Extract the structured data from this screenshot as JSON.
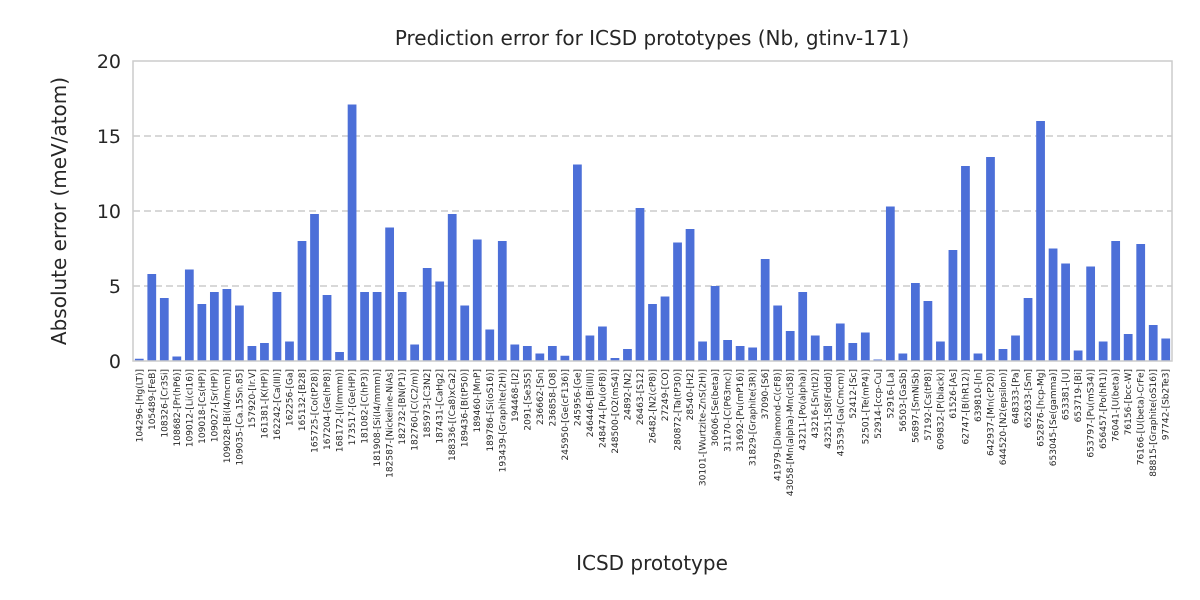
{
  "chart_data": {
    "type": "bar",
    "title": "Prediction error for ICSD prototypes (Nb, gtinv-171)",
    "xlabel": "ICSD prototype",
    "ylabel": "Absolute error (meV/atom)",
    "ylim": [
      0,
      20
    ],
    "yticks": [
      0,
      5,
      10,
      15,
      20
    ],
    "grid": true,
    "color": "#4c6fd8",
    "categories": [
      "104296-[Hg(LT)]",
      "105489-[FeB]",
      "108326-[Cr3Si]",
      "108682-[Pr(hP6)]",
      "109012-[Li(cI16)]",
      "109018-[Cs(HP)]",
      "109027-[Sr(HP)]",
      "109028-[Bi(I4/mcm)]",
      "109035-[Ca.15Sn.85]",
      "157920-[Ir.V]",
      "161381-[K(HP)]",
      "162242-[Ca(III)]",
      "162256-[Ga]",
      "165132-[B28]",
      "165725-[Co(tP28)]",
      "167204-[Ge(hP8)]",
      "168172-[I(Immm)]",
      "173517-[Ge(HP)]",
      "181082-[C(hP3)]",
      "181908-[Si(I4/mmm)]",
      "182587-[Nickeline-NiAs]",
      "182732-[BN(P1)]",
      "182760-[C(C2/m)]",
      "185973-[C3N2]",
      "187431-[CaHg2]",
      "188336-[(Ca8)xCa2]",
      "189436-[B(tP50)]",
      "189460-[MnP]",
      "189786-[Si(oS16)]",
      "193439-[Graphite(2H)]",
      "194468-[I2]",
      "2091-[Se3S5]",
      "236662-[Sn]",
      "236858-[O8]",
      "245950-[Ge(cF136)]",
      "245956-[Ge]",
      "246446-[Bi(III)]",
      "248474-[Pu(oF8)]",
      "248500-[O2(mS4)]",
      "24892-[N2]",
      "26463-[S12]",
      "26482-[N2(cP8)]",
      "27249-[CO]",
      "280872-[Ta(tP30)]",
      "28540-[H2]",
      "30101-[Wurtzite-ZnS(2H)]",
      "30606-[Se(beta)]",
      "31170-[C(P63mc)]",
      "31692-[Pu(mP16)]",
      "31829-[Graphite(3R)]",
      "37090-[S6]",
      "41979-[Diamond-C(cF8)]",
      "43058-[Mn(alpha)-Mn(cI58)]",
      "43211-[Po(alpha)]",
      "43216-[Sn(tI2)]",
      "43251-[S8(Fddd)]",
      "43539-[Ga(Cmcm)]",
      "52412-[Sc]",
      "52501-[Te(mP4)]",
      "52914-[ccp-Cu]",
      "52916-[La]",
      "56503-[GaSb]",
      "56897-[SmNiSb]",
      "57192-[Cs(tP8)]",
      "609832-[P(black)]",
      "61526-[As]",
      "62747-[B(hR12)]",
      "639810-[In]",
      "642937-[Mn(cP20)]",
      "644520-[N2(epsilon)]",
      "648333-[Pa]",
      "652633-[Sm]",
      "652876-[hcp-Mg]",
      "653045-[Se(gamma)]",
      "653381-[U]",
      "653719-[Bi]",
      "653797-[Pu(mS34)]",
      "656457-[Po(hR1)]",
      "76041-[U(beta)]",
      "76156-[bcc-W]",
      "76166-[U(beta)-CrFe]",
      "88815-[Graphite(oS16)]",
      "97742-[Sb2Te3]"
    ],
    "values": [
      0.15,
      5.8,
      4.2,
      0.3,
      6.1,
      3.8,
      4.6,
      4.8,
      3.7,
      1.0,
      1.2,
      4.6,
      1.3,
      8.0,
      9.8,
      4.4,
      0.6,
      17.1,
      4.6,
      4.6,
      8.9,
      4.6,
      1.1,
      6.2,
      5.3,
      9.8,
      3.7,
      8.1,
      2.1,
      8.0,
      1.1,
      1.0,
      0.5,
      1.0,
      0.35,
      13.1,
      1.7,
      2.3,
      0.2,
      0.8,
      10.2,
      3.8,
      4.3,
      7.9,
      8.8,
      1.3,
      5.0,
      1.4,
      1.0,
      0.9,
      6.8,
      3.7,
      2.0,
      4.6,
      1.7,
      1.0,
      2.5,
      1.2,
      1.9,
      0.1,
      10.3,
      0.5,
      5.2,
      4.0,
      1.3,
      7.4,
      13.0,
      0.5,
      13.6,
      0.8,
      1.7,
      4.2,
      16.0,
      7.5,
      6.5,
      0.7,
      6.3,
      1.3,
      8.0,
      1.8,
      7.8,
      2.4,
      1.5
    ]
  }
}
